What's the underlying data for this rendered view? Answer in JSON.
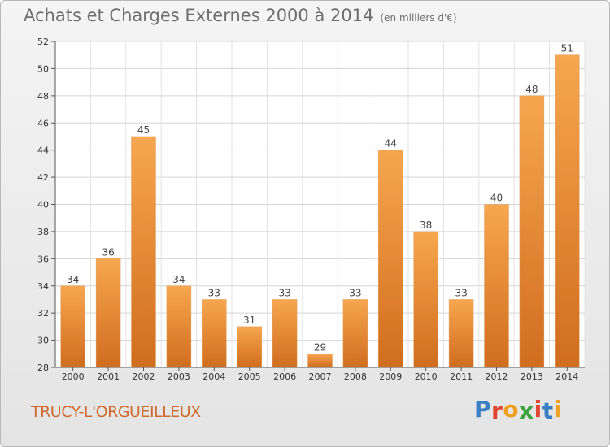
{
  "header": {
    "title": "Achats et Charges Externes 2000 à 2014",
    "unit": "(en milliers d'€)"
  },
  "footer": {
    "commune": "TRUCY-L'ORGUEILLEUX",
    "logo_letters": [
      "P",
      "r",
      "o",
      "x",
      "i",
      "t",
      "i"
    ]
  },
  "colors": {
    "bar_light": "#f7a650",
    "bar_dark": "#d06d1e",
    "commune_text": "#cf6a2e",
    "logo": [
      "#3a7fc4",
      "#e0462f",
      "#f0a020",
      "#3aa23a",
      "#e0462f",
      "#3a7fc4",
      "#f0a020"
    ]
  },
  "chart_data": {
    "type": "bar",
    "title": "Achats et Charges Externes 2000 à 2014",
    "categories": [
      "2000",
      "2001",
      "2002",
      "2003",
      "2004",
      "2005",
      "2006",
      "2007",
      "2008",
      "2009",
      "2010",
      "2011",
      "2012",
      "2013",
      "2014"
    ],
    "values": [
      34,
      36,
      45,
      34,
      33,
      31,
      33,
      29,
      33,
      44,
      38,
      33,
      40,
      48,
      51
    ],
    "ylim": [
      28,
      52
    ],
    "yticks": [
      28,
      30,
      32,
      34,
      36,
      38,
      40,
      42,
      44,
      46,
      48,
      50,
      52
    ],
    "grid": true,
    "xlabel": "",
    "ylabel": ""
  }
}
